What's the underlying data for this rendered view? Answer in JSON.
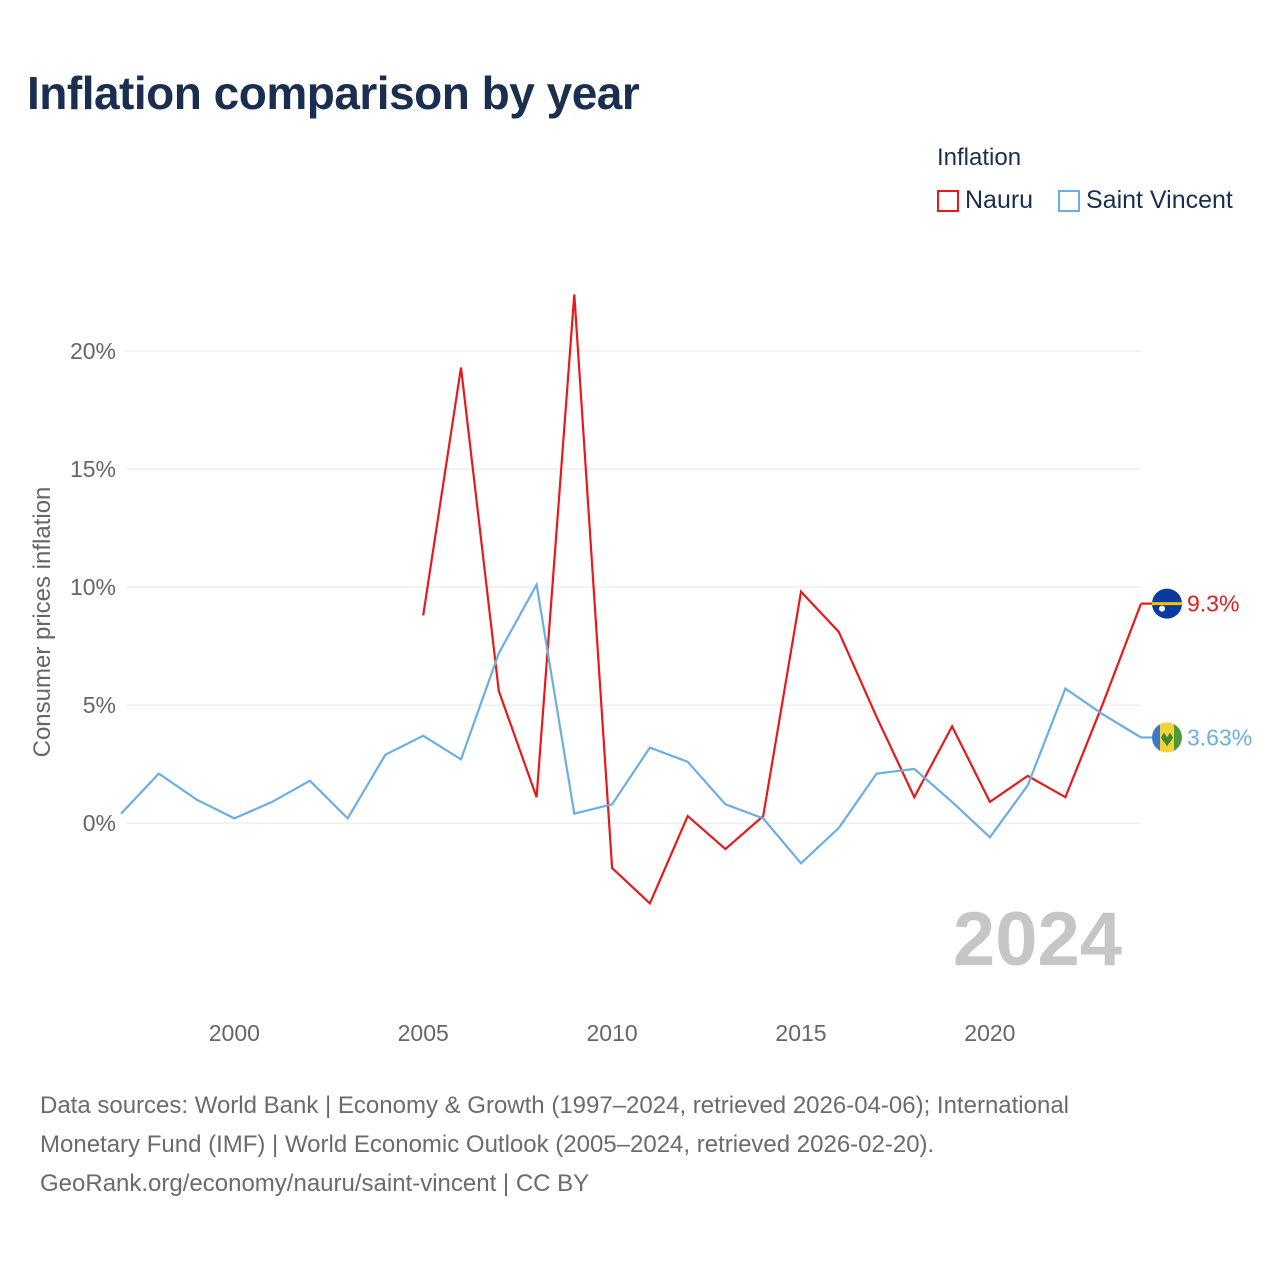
{
  "title": "Inflation comparison by year",
  "legend": {
    "title": "Inflation",
    "items": [
      {
        "label": "Nauru",
        "color": "#e8191b"
      },
      {
        "label": "Saint Vincent",
        "color": "#6aaee6"
      }
    ]
  },
  "chart_data": {
    "type": "line",
    "title": "Inflation comparison by year",
    "xlabel": "",
    "ylabel": "Consumer prices inflation",
    "xlim": [
      1997,
      2024
    ],
    "ylim": [
      -5.5,
      22.5
    ],
    "x_ticks": [
      2000,
      2005,
      2010,
      2015,
      2020
    ],
    "x_tick_labels": [
      "2000",
      "2005",
      "2010",
      "2015",
      "2020"
    ],
    "y_ticks": [
      0,
      5,
      10,
      15,
      20
    ],
    "y_tick_labels": [
      "0%",
      "5%",
      "10%",
      "15%",
      "20%"
    ],
    "grid": true,
    "year_watermark": "2024",
    "series": [
      {
        "name": "Nauru",
        "color": "#e8191b",
        "x": [
          2005,
          2006,
          2007,
          2008,
          2009,
          2010,
          2011,
          2012,
          2013,
          2014,
          2015,
          2016,
          2017,
          2018,
          2019,
          2020,
          2021,
          2022,
          2023,
          2024
        ],
        "values": [
          8.8,
          19.3,
          5.6,
          1.1,
          22.4,
          -1.9,
          -3.4,
          0.3,
          -1.1,
          0.3,
          9.8,
          8.1,
          4.5,
          1.1,
          4.1,
          0.9,
          2.0,
          1.1,
          5.1,
          9.3
        ],
        "end_label": "9.3%"
      },
      {
        "name": "Saint Vincent",
        "color": "#6aaee6",
        "x": [
          1997,
          1998,
          1999,
          2000,
          2001,
          2002,
          2003,
          2004,
          2005,
          2006,
          2007,
          2008,
          2009,
          2010,
          2011,
          2012,
          2013,
          2014,
          2015,
          2016,
          2017,
          2018,
          2019,
          2020,
          2021,
          2022,
          2023,
          2024
        ],
        "values": [
          0.4,
          2.1,
          1.0,
          0.2,
          0.9,
          1.8,
          0.2,
          2.9,
          3.7,
          2.7,
          7.2,
          10.1,
          0.4,
          0.8,
          3.2,
          2.6,
          0.8,
          0.2,
          -1.7,
          -0.2,
          2.1,
          2.3,
          0.9,
          -0.6,
          1.6,
          5.7,
          4.6,
          3.63
        ],
        "end_label": "3.63%"
      }
    ]
  },
  "sources": {
    "line1": "Data sources: World Bank | Economy & Growth (1997–2024, retrieved 2026-04-06); International",
    "line2": "Monetary Fund (IMF) | World Economic Outlook (2005–2024, retrieved 2026-02-20).",
    "line3": "GeoRank.org/economy/nauru/saint-vincent | CC BY"
  }
}
